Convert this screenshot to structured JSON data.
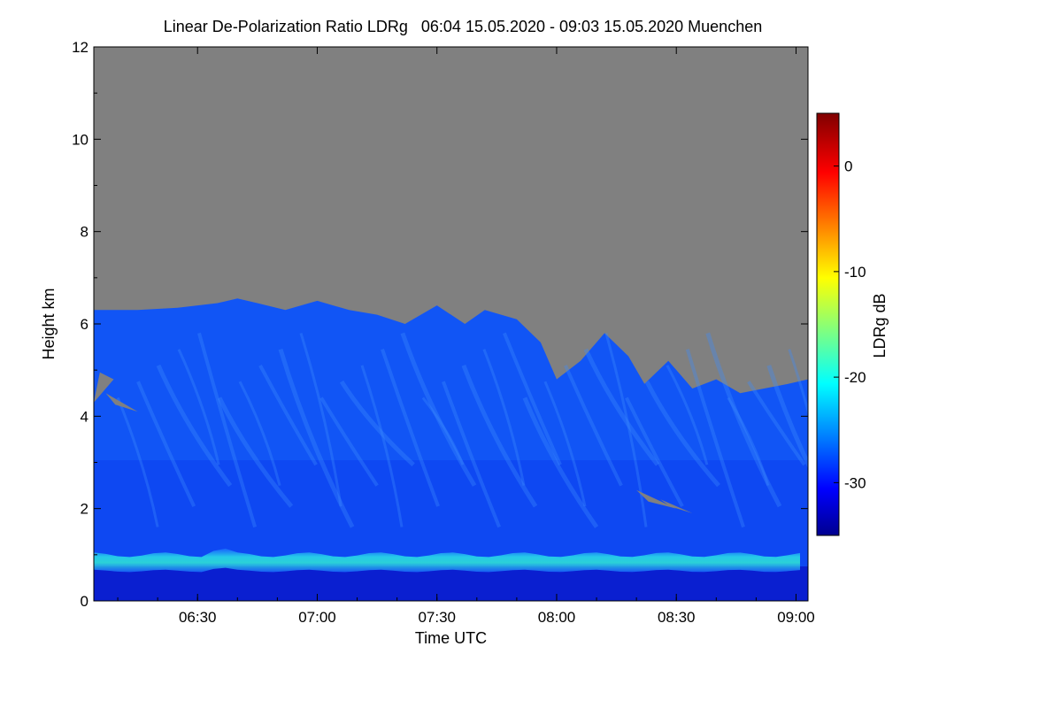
{
  "chart_data": {
    "type": "heatmap",
    "title": "Linear De-Polarization Ratio LDRg   06:04 15.05.2020 - 09:03 15.05.2020 Muenchen",
    "xlabel": "Time UTC",
    "ylabel": "Height km",
    "x_range_minutes": [
      364,
      543
    ],
    "x_ticks": [
      {
        "minute": 390,
        "label": "06:30"
      },
      {
        "minute": 420,
        "label": "07:00"
      },
      {
        "minute": 450,
        "label": "07:30"
      },
      {
        "minute": 480,
        "label": "08:00"
      },
      {
        "minute": 510,
        "label": "08:30"
      },
      {
        "minute": 540,
        "label": "09:00"
      }
    ],
    "ylim": [
      0,
      12
    ],
    "y_ticks": [
      {
        "value": 0,
        "label": "0"
      },
      {
        "value": 2,
        "label": "2"
      },
      {
        "value": 4,
        "label": "4"
      },
      {
        "value": 6,
        "label": "6"
      },
      {
        "value": 8,
        "label": "8"
      },
      {
        "value": 10,
        "label": "10"
      },
      {
        "value": 12,
        "label": "12"
      }
    ],
    "colorbar": {
      "label": "LDRg dB",
      "range": [
        -35,
        5
      ],
      "ticks": [
        {
          "value": 0,
          "label": "0"
        },
        {
          "value": -10,
          "label": "-10"
        },
        {
          "value": -20,
          "label": "-20"
        },
        {
          "value": -30,
          "label": "-30"
        }
      ]
    },
    "no_signal_color": "#808080",
    "signal_top_km": [
      [
        364,
        6.3
      ],
      [
        375,
        6.3
      ],
      [
        385,
        6.35
      ],
      [
        395,
        6.45
      ],
      [
        400,
        6.55
      ],
      [
        405,
        6.45
      ],
      [
        412,
        6.3
      ],
      [
        420,
        6.5
      ],
      [
        428,
        6.3
      ],
      [
        435,
        6.2
      ],
      [
        442,
        6.0
      ],
      [
        450,
        6.4
      ],
      [
        457,
        6.0
      ],
      [
        462,
        6.3
      ],
      [
        470,
        6.1
      ],
      [
        476,
        5.6
      ],
      [
        480,
        4.8
      ],
      [
        486,
        5.2
      ],
      [
        492,
        5.8
      ],
      [
        498,
        5.3
      ],
      [
        502,
        4.7
      ],
      [
        508,
        5.2
      ],
      [
        514,
        4.6
      ],
      [
        520,
        4.8
      ],
      [
        526,
        4.5
      ],
      [
        532,
        4.6
      ],
      [
        538,
        4.7
      ],
      [
        543,
        4.8
      ]
    ],
    "features": [
      {
        "name": "boundary-layer top",
        "height_km": [
          0.65,
          1.0
        ],
        "ldr_db": -22
      },
      {
        "name": "near-surface layer",
        "height_km": [
          0.0,
          0.65
        ],
        "ldr_db": -32
      },
      {
        "name": "virga / ice fall streaks",
        "height_km": [
          1.5,
          6.5
        ],
        "ldr_db": -27
      }
    ]
  }
}
